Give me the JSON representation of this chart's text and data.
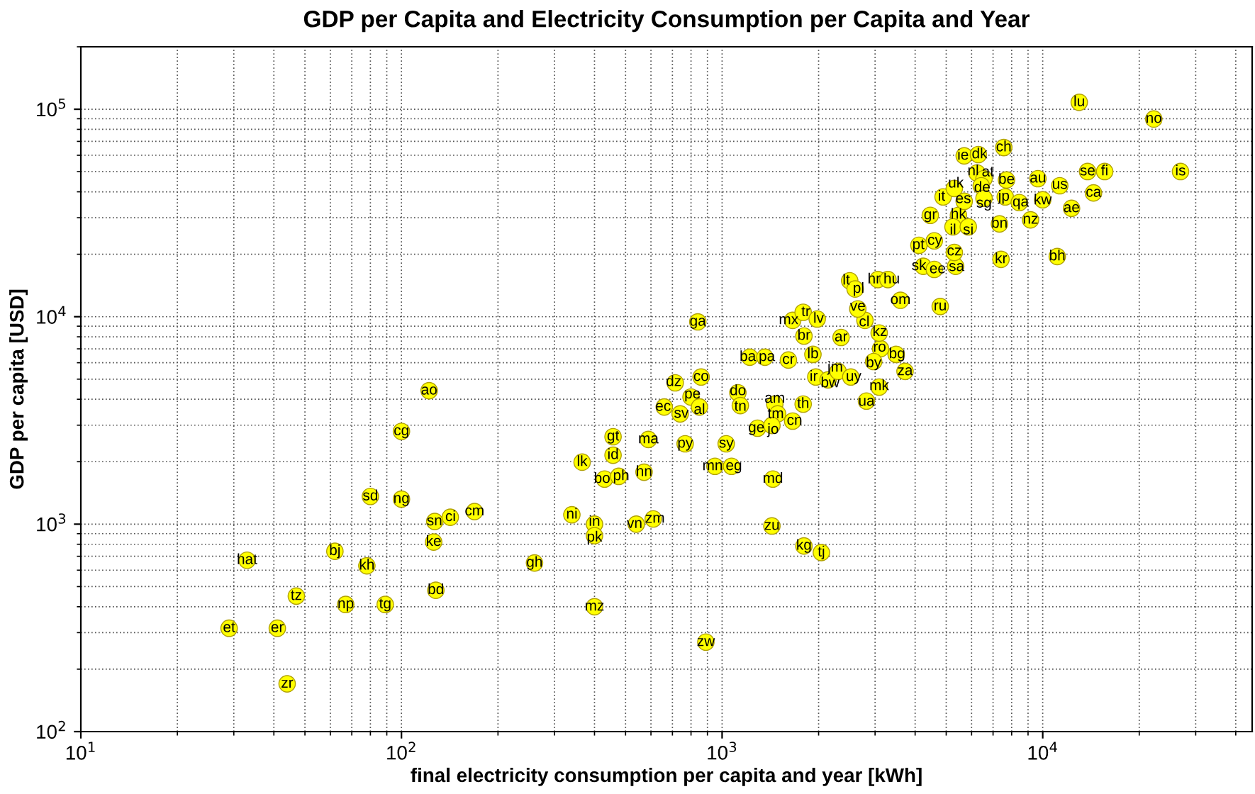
{
  "chart_data": {
    "type": "scatter",
    "title": "GDP per Capita and Electricity Consumption per Capita and Year",
    "xlabel": "final electricity consumption per capita and year [kWh]",
    "ylabel": "GDP per capita [USD]",
    "log": "xy",
    "grid": true,
    "marker": "circle",
    "xlim": [
      10,
      45000
    ],
    "ylim": [
      100,
      200000
    ],
    "xticks": [
      {
        "value": 10,
        "label": "10$^{1}$"
      },
      {
        "value": 100,
        "label": "10$^{2}$"
      },
      {
        "value": 1000,
        "label": "10$^{3}$"
      },
      {
        "value": 10000,
        "label": "10$^{4}$"
      }
    ],
    "yticks": [
      {
        "value": 100,
        "label": "10$^{2}$"
      },
      {
        "value": 1000,
        "label": "10$^{3}$"
      },
      {
        "value": 10000,
        "label": "10$^{4}$"
      },
      {
        "value": 100000,
        "label": "10$^{5}$"
      }
    ],
    "series": [
      {
        "color": "#ffff00",
        "x": [
          33,
          29,
          41,
          44,
          47,
          62,
          78,
          67,
          89,
          80,
          100,
          100,
          122,
          126,
          128,
          127,
          142,
          169,
          260,
          400,
          340,
          400,
          400,
          540,
          610,
          890,
          1430,
          1800,
          2040,
          366,
          457,
          457,
          430,
          476,
          571,
          589,
          767,
          1030,
          950,
          1070,
          1440,
          840,
          714,
          860,
          800,
          660,
          740,
          850,
          1120,
          1140,
          1460,
          1490,
          1290,
          1430,
          1660,
          1790,
          1220,
          1360,
          1610,
          1920,
          1800,
          1660,
          1790,
          1980,
          2350,
          1960,
          2140,
          2300,
          2520,
          3090,
          2820,
          3720,
          3490,
          3120,
          2970,
          3090,
          2790,
          2650,
          2500,
          2600,
          3060,
          3290,
          3600,
          4790,
          7410,
          11100,
          4240,
          4590,
          5350,
          5300,
          4110,
          4590,
          4460,
          5460,
          5250,
          5860,
          7330,
          9160,
          4890,
          5690,
          5300,
          5690,
          6300,
          6240,
          6560,
          6430,
          7710,
          7560,
          6560,
          7640,
          8450,
          10000,
          9660,
          11300,
          12300,
          14400,
          13800,
          15600,
          13000,
          22200,
          26900
        ],
        "values": [
          670,
          315,
          315,
          170,
          450,
          740,
          630,
          410,
          410,
          1360,
          1320,
          2800,
          4400,
          820,
          480,
          1030,
          1080,
          1150,
          650,
          400,
          1110,
          1000,
          880,
          1000,
          1060,
          270,
          980,
          785,
          730,
          1990,
          2640,
          2150,
          1650,
          1700,
          1780,
          2560,
          2440,
          2440,
          1900,
          1900,
          1650,
          9440,
          4800,
          5120,
          4100,
          3670,
          3400,
          3670,
          4300,
          3730,
          3790,
          3400,
          2900,
          2990,
          3140,
          3790,
          6380,
          6380,
          6180,
          6580,
          8070,
          9600,
          10500,
          9750,
          7940,
          5120,
          4960,
          5450,
          5120,
          4580,
          3920,
          5450,
          6580,
          7010,
          6080,
          8340,
          9600,
          10900,
          14900,
          13600,
          15100,
          15100,
          12000,
          11200,
          18900,
          19500,
          17500,
          16900,
          17500,
          20400,
          22100,
          23200,
          30800,
          30800,
          27100,
          27100,
          28000,
          29300,
          37800,
          36000,
          41500,
          59600,
          60500,
          49300,
          46300,
          42800,
          45600,
          65400,
          37200,
          37800,
          35500,
          36600,
          46300,
          42800,
          33300,
          39500,
          50100,
          50100,
          108000,
          89700,
          50100
        ]
      }
    ],
    "annotations": [
      {
        "text": "hat",
        "x": 33,
        "y": 670
      },
      {
        "text": "et",
        "x": 29,
        "y": 315
      },
      {
        "text": "er",
        "x": 41,
        "y": 315
      },
      {
        "text": "zr",
        "x": 44,
        "y": 170
      },
      {
        "text": "tz",
        "x": 47,
        "y": 450
      },
      {
        "text": "bj",
        "x": 62,
        "y": 740
      },
      {
        "text": "kh",
        "x": 78,
        "y": 630
      },
      {
        "text": "np",
        "x": 67,
        "y": 410
      },
      {
        "text": "tg",
        "x": 89,
        "y": 410
      },
      {
        "text": "sd",
        "x": 80,
        "y": 1360
      },
      {
        "text": "ng",
        "x": 100,
        "y": 1320
      },
      {
        "text": "cg",
        "x": 100,
        "y": 2800
      },
      {
        "text": "ao",
        "x": 122,
        "y": 4400
      },
      {
        "text": "ke",
        "x": 126,
        "y": 820
      },
      {
        "text": "bd",
        "x": 128,
        "y": 480
      },
      {
        "text": "sn",
        "x": 127,
        "y": 1030
      },
      {
        "text": "ci",
        "x": 142,
        "y": 1080
      },
      {
        "text": "cm",
        "x": 169,
        "y": 1150
      },
      {
        "text": "gh",
        "x": 260,
        "y": 650
      },
      {
        "text": "mz",
        "x": 400,
        "y": 400
      },
      {
        "text": "ni",
        "x": 340,
        "y": 1110
      },
      {
        "text": "in",
        "x": 400,
        "y": 1000
      },
      {
        "text": "pk",
        "x": 400,
        "y": 880
      },
      {
        "text": "vn",
        "x": 540,
        "y": 1000
      },
      {
        "text": "zm",
        "x": 610,
        "y": 1060
      },
      {
        "text": "zw",
        "x": 890,
        "y": 270
      },
      {
        "text": "zu",
        "x": 1430,
        "y": 980
      },
      {
        "text": "kg",
        "x": 1800,
        "y": 785
      },
      {
        "text": "tj",
        "x": 2040,
        "y": 730
      },
      {
        "text": "lk",
        "x": 366,
        "y": 1990
      },
      {
        "text": "gt",
        "x": 457,
        "y": 2640
      },
      {
        "text": "id",
        "x": 457,
        "y": 2150
      },
      {
        "text": "bo",
        "x": 430,
        "y": 1650
      },
      {
        "text": "ph",
        "x": 476,
        "y": 1700
      },
      {
        "text": "hn",
        "x": 571,
        "y": 1780
      },
      {
        "text": "ma",
        "x": 589,
        "y": 2560
      },
      {
        "text": "py",
        "x": 767,
        "y": 2440
      },
      {
        "text": "sy",
        "x": 1030,
        "y": 2440
      },
      {
        "text": "mn",
        "x": 950,
        "y": 1900
      },
      {
        "text": "eg",
        "x": 1070,
        "y": 1900
      },
      {
        "text": "md",
        "x": 1440,
        "y": 1650
      },
      {
        "text": "ga",
        "x": 840,
        "y": 9440
      },
      {
        "text": "dz",
        "x": 714,
        "y": 4800
      },
      {
        "text": "co",
        "x": 860,
        "y": 5120
      },
      {
        "text": "pe",
        "x": 800,
        "y": 4100
      },
      {
        "text": "ec",
        "x": 660,
        "y": 3670
      },
      {
        "text": "sv",
        "x": 740,
        "y": 3400
      },
      {
        "text": "al",
        "x": 850,
        "y": 3670
      },
      {
        "text": "do",
        "x": 1120,
        "y": 4300
      },
      {
        "text": "tn",
        "x": 1140,
        "y": 3730
      },
      {
        "text": "am",
        "x": 1460,
        "y": 3790
      },
      {
        "text": "tm",
        "x": 1490,
        "y": 3400
      },
      {
        "text": "ge",
        "x": 1290,
        "y": 2900
      },
      {
        "text": "jo",
        "x": 1430,
        "y": 2990
      },
      {
        "text": "cn",
        "x": 1660,
        "y": 3140
      },
      {
        "text": "th",
        "x": 1790,
        "y": 3790
      },
      {
        "text": "ba",
        "x": 1220,
        "y": 6380
      },
      {
        "text": "pa",
        "x": 1360,
        "y": 6380
      },
      {
        "text": "cr",
        "x": 1610,
        "y": 6180
      },
      {
        "text": "lb",
        "x": 1920,
        "y": 6580
      },
      {
        "text": "br",
        "x": 1800,
        "y": 8070
      },
      {
        "text": "mx",
        "x": 1660,
        "y": 9600
      },
      {
        "text": "tr",
        "x": 1790,
        "y": 10500
      },
      {
        "text": "lv",
        "x": 1980,
        "y": 9750
      },
      {
        "text": "ar",
        "x": 2350,
        "y": 7940
      },
      {
        "text": "ir",
        "x": 1960,
        "y": 5120
      },
      {
        "text": "bw",
        "x": 2140,
        "y": 4960
      },
      {
        "text": "jm",
        "x": 2300,
        "y": 5450
      },
      {
        "text": "uy",
        "x": 2520,
        "y": 5120
      },
      {
        "text": "mk",
        "x": 3090,
        "y": 4580
      },
      {
        "text": "ua",
        "x": 2820,
        "y": 3920
      },
      {
        "text": "za",
        "x": 3720,
        "y": 5450
      },
      {
        "text": "bg",
        "x": 3490,
        "y": 6580
      },
      {
        "text": "ro",
        "x": 3120,
        "y": 7010
      },
      {
        "text": "by",
        "x": 2970,
        "y": 6080
      },
      {
        "text": "kz",
        "x": 3090,
        "y": 8340
      },
      {
        "text": "cl",
        "x": 2790,
        "y": 9600
      },
      {
        "text": "ve",
        "x": 2650,
        "y": 10900
      },
      {
        "text": "lt",
        "x": 2500,
        "y": 14900
      },
      {
        "text": "pl",
        "x": 2600,
        "y": 13600
      },
      {
        "text": "hr",
        "x": 3060,
        "y": 15100
      },
      {
        "text": "hu",
        "x": 3290,
        "y": 15100
      },
      {
        "text": "om",
        "x": 3600,
        "y": 12000
      },
      {
        "text": "ru",
        "x": 4790,
        "y": 11200
      },
      {
        "text": "kr",
        "x": 7410,
        "y": 18900
      },
      {
        "text": "bh",
        "x": 11100,
        "y": 19500
      },
      {
        "text": "sk",
        "x": 4240,
        "y": 17500
      },
      {
        "text": "ee",
        "x": 4590,
        "y": 16900
      },
      {
        "text": "sa",
        "x": 5350,
        "y": 17500
      },
      {
        "text": "cz",
        "x": 5300,
        "y": 20400
      },
      {
        "text": "pt",
        "x": 4110,
        "y": 22100
      },
      {
        "text": "cy",
        "x": 4590,
        "y": 23200
      },
      {
        "text": "gr",
        "x": 4460,
        "y": 30800
      },
      {
        "text": "hk",
        "x": 5460,
        "y": 30800
      },
      {
        "text": "il",
        "x": 5250,
        "y": 27100
      },
      {
        "text": "si",
        "x": 5860,
        "y": 27100
      },
      {
        "text": "bn",
        "x": 7330,
        "y": 28000
      },
      {
        "text": "nz",
        "x": 9160,
        "y": 29300
      },
      {
        "text": "it",
        "x": 4890,
        "y": 37800
      },
      {
        "text": "es",
        "x": 5690,
        "y": 36000
      },
      {
        "text": "uk",
        "x": 5300,
        "y": 41500
      },
      {
        "text": "ie",
        "x": 5690,
        "y": 59600
      },
      {
        "text": "dk",
        "x": 6300,
        "y": 60500
      },
      {
        "text": "nl",
        "x": 6240,
        "y": 49300
      },
      {
        "text": "at",
        "x": 6560,
        "y": 46300
      },
      {
        "text": "de",
        "x": 6430,
        "y": 42800
      },
      {
        "text": "be",
        "x": 7710,
        "y": 45600
      },
      {
        "text": "ch",
        "x": 7560,
        "y": 65400
      },
      {
        "text": "sg",
        "x": 6560,
        "y": 37200
      },
      {
        "text": "jp",
        "x": 7640,
        "y": 37800
      },
      {
        "text": "qa",
        "x": 8450,
        "y": 35500
      },
      {
        "text": "kw",
        "x": 10000,
        "y": 36600
      },
      {
        "text": "au",
        "x": 9660,
        "y": 46300
      },
      {
        "text": "us",
        "x": 11300,
        "y": 42800
      },
      {
        "text": "ae",
        "x": 12300,
        "y": 33300
      },
      {
        "text": "ca",
        "x": 14400,
        "y": 39500
      },
      {
        "text": "se",
        "x": 13800,
        "y": 50100
      },
      {
        "text": "fi",
        "x": 15600,
        "y": 50100
      },
      {
        "text": "lu",
        "x": 13000,
        "y": 108000
      },
      {
        "text": "no",
        "x": 22200,
        "y": 89700
      },
      {
        "text": "is",
        "x": 26900,
        "y": 50100
      }
    ]
  }
}
